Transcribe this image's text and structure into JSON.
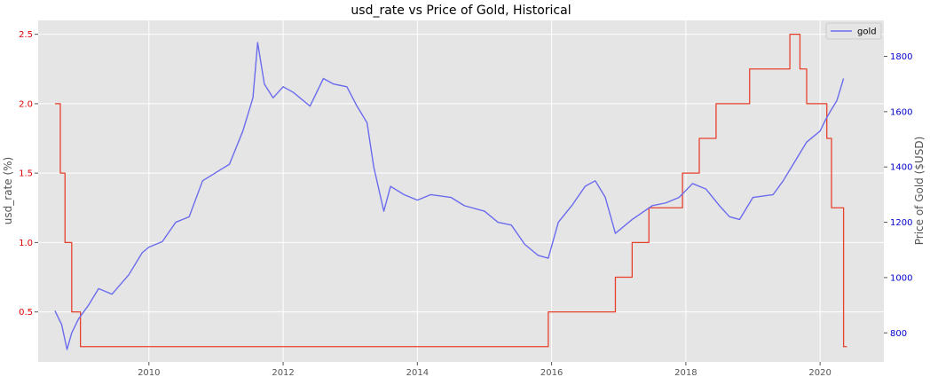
{
  "chart_data": {
    "type": "line",
    "title": "usd_rate vs Price of Gold, Historical",
    "xlabel": "",
    "x_ticks": [
      "2010",
      "2012",
      "2014",
      "2016",
      "2018",
      "2020"
    ],
    "xlim": [
      2008.35,
      2020.95
    ],
    "left_axis": {
      "label": "usd_rate (%)",
      "ticks": [
        "0.5",
        "1.0",
        "1.5",
        "2.0",
        "2.5"
      ],
      "ylim": [
        0.14,
        2.6
      ],
      "tick_color": "#dd0000"
    },
    "right_axis": {
      "label": "Price of Gold ($USD)",
      "ticks": [
        "800",
        "1000",
        "1200",
        "1400",
        "1600",
        "1800"
      ],
      "ylim": [
        695,
        1930
      ],
      "tick_color": "#0000cc"
    },
    "grid": true,
    "legend": {
      "placement": "top-right",
      "entries": [
        "gold"
      ]
    },
    "series": [
      {
        "name": "usd_rate",
        "axis": "left",
        "color": "#e8412d",
        "step": true,
        "x": [
          2008.6,
          2008.68,
          2008.75,
          2008.85,
          2008.98,
          2015.95,
          2016.95,
          2017.2,
          2017.45,
          2017.95,
          2018.2,
          2018.45,
          2018.95,
          2019.55,
          2019.7,
          2019.8,
          2020.1,
          2020.17,
          2020.35
        ],
        "values": [
          2.0,
          1.5,
          1.0,
          0.5,
          0.25,
          0.5,
          0.75,
          1.0,
          1.25,
          1.5,
          1.75,
          2.0,
          2.25,
          2.5,
          2.25,
          2.0,
          1.75,
          1.25,
          0.25
        ]
      },
      {
        "name": "gold",
        "axis": "right",
        "color": "#6b6bee",
        "x": [
          2008.6,
          2008.7,
          2008.78,
          2008.85,
          2008.95,
          2009.1,
          2009.25,
          2009.45,
          2009.7,
          2009.9,
          2010.0,
          2010.2,
          2010.4,
          2010.6,
          2010.8,
          2011.0,
          2011.2,
          2011.4,
          2011.55,
          2011.62,
          2011.72,
          2011.85,
          2012.0,
          2012.15,
          2012.4,
          2012.6,
          2012.75,
          2012.95,
          2013.1,
          2013.25,
          2013.35,
          2013.5,
          2013.6,
          2013.8,
          2014.0,
          2014.2,
          2014.5,
          2014.7,
          2015.0,
          2015.2,
          2015.4,
          2015.6,
          2015.8,
          2015.95,
          2016.1,
          2016.3,
          2016.5,
          2016.65,
          2016.8,
          2016.95,
          2017.2,
          2017.5,
          2017.7,
          2017.9,
          2018.1,
          2018.3,
          2018.5,
          2018.65,
          2018.8,
          2019.0,
          2019.3,
          2019.45,
          2019.6,
          2019.8,
          2020.0,
          2020.08,
          2020.15,
          2020.25,
          2020.35
        ],
        "values": [
          880,
          830,
          740,
          800,
          850,
          900,
          960,
          940,
          1010,
          1090,
          1110,
          1130,
          1200,
          1220,
          1350,
          1380,
          1410,
          1530,
          1650,
          1850,
          1700,
          1650,
          1690,
          1670,
          1620,
          1720,
          1700,
          1690,
          1620,
          1560,
          1400,
          1240,
          1330,
          1300,
          1280,
          1300,
          1290,
          1260,
          1240,
          1200,
          1190,
          1120,
          1080,
          1070,
          1200,
          1260,
          1330,
          1350,
          1290,
          1160,
          1210,
          1260,
          1270,
          1290,
          1340,
          1320,
          1260,
          1220,
          1210,
          1290,
          1300,
          1350,
          1410,
          1490,
          1530,
          1570,
          1600,
          1640,
          1720
        ]
      }
    ]
  }
}
